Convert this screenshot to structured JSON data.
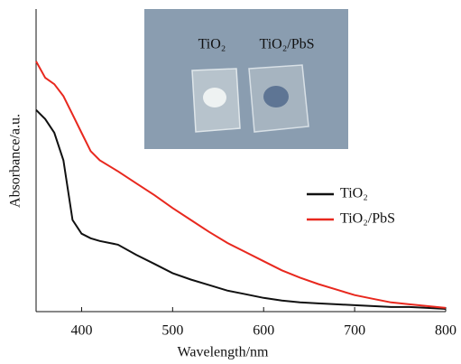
{
  "chart_data": {
    "type": "line",
    "x_label": "Wavelength/nm",
    "y_label": "Absorbance/a.u.",
    "annotations": [
      "TiO₂",
      "TiO₂/PbS"
    ],
    "x": [
      350,
      360,
      370,
      380,
      390,
      400,
      410,
      420,
      440,
      460,
      480,
      500,
      520,
      540,
      560,
      580,
      600,
      620,
      640,
      660,
      680,
      700,
      720,
      740,
      760,
      780,
      800
    ],
    "series": [
      {
        "name": "TiO₂",
        "color": "#111111",
        "values": [
          2.2,
          2.1,
          1.95,
          1.65,
          1.0,
          0.85,
          0.8,
          0.77,
          0.73,
          0.62,
          0.52,
          0.42,
          0.35,
          0.29,
          0.23,
          0.19,
          0.15,
          0.12,
          0.1,
          0.09,
          0.08,
          0.07,
          0.06,
          0.05,
          0.05,
          0.04,
          0.03
        ]
      },
      {
        "name": "TiO₂/PbS",
        "color": "#e8281e",
        "values": [
          2.73,
          2.55,
          2.48,
          2.35,
          2.15,
          1.95,
          1.75,
          1.65,
          1.53,
          1.4,
          1.27,
          1.13,
          1.0,
          0.87,
          0.75,
          0.65,
          0.55,
          0.45,
          0.37,
          0.3,
          0.24,
          0.18,
          0.14,
          0.1,
          0.08,
          0.06,
          0.04
        ]
      }
    ],
    "xlim": [
      350,
      800
    ],
    "xticks": [
      400,
      500,
      600,
      700,
      800
    ],
    "ylim": [
      0,
      3.3
    ]
  }
}
